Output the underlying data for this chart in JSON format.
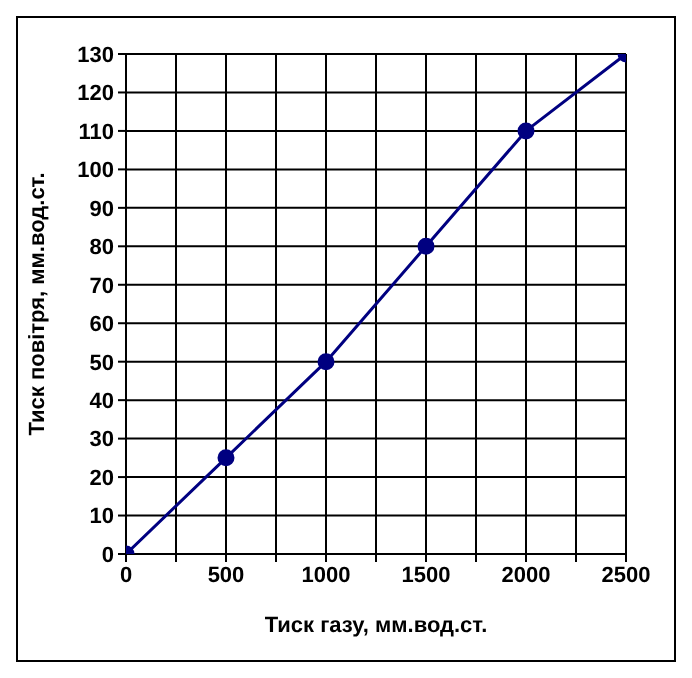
{
  "chart_data": {
    "type": "line",
    "xlabel": "Тиск газу, мм.вод.ст.",
    "ylabel": "Тиск повітря, мм.вод.ст.",
    "x": [
      0,
      500,
      1000,
      1500,
      2000,
      2500
    ],
    "series": [
      {
        "color": "#000080",
        "values": [
          0,
          25,
          50,
          80,
          110,
          130
        ]
      }
    ],
    "xlim": [
      0,
      2500
    ],
    "xticks": [
      0,
      {
        "value": 250,
        "label": null
      },
      500,
      {
        "value": 750,
        "label": null
      },
      1000,
      {
        "value": 1250,
        "label": null
      },
      1500,
      {
        "value": 1750,
        "label": null
      },
      2000,
      {
        "value": 2250,
        "label": null
      },
      2500
    ],
    "ylim": [
      0,
      130
    ],
    "yticks": [
      0,
      10,
      20,
      30,
      40,
      50,
      60,
      70,
      80,
      90,
      100,
      110,
      120,
      130
    ],
    "grid": true,
    "marker": "circle",
    "line_style": "solid",
    "legend": false
  }
}
